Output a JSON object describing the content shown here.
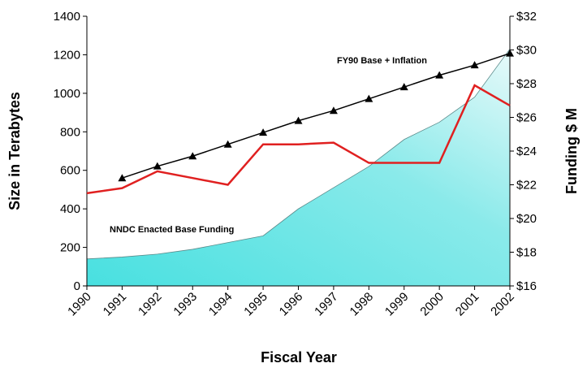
{
  "chart_data": {
    "type": "line",
    "categories": [
      "1990",
      "1991",
      "1992",
      "1993",
      "1994",
      "1995",
      "1996",
      "1997",
      "1998",
      "1999",
      "2000",
      "2001",
      "2002"
    ],
    "x_label": "Fiscal Year",
    "y_label": "Size in Terabytes",
    "y2_label": "Funding $ M",
    "ylim": [
      0,
      1400
    ],
    "yticks": [
      0,
      200,
      400,
      600,
      800,
      1000,
      1200,
      1400
    ],
    "y2lim": [
      16,
      32
    ],
    "y2ticks": [
      {
        "value": 16,
        "label": "$16"
      },
      {
        "value": 18,
        "label": "$18"
      },
      {
        "value": 20,
        "label": "$20"
      },
      {
        "value": 22,
        "label": "$22"
      },
      {
        "value": 24,
        "label": "$24"
      },
      {
        "value": 26,
        "label": "$26"
      },
      {
        "value": 28,
        "label": "$28"
      },
      {
        "value": 30,
        "label": "$30"
      },
      {
        "value": 32,
        "label": "$32"
      }
    ],
    "series": [
      {
        "kind": "area",
        "color": "#48e0e0",
        "values": [
          140,
          150,
          165,
          190,
          225,
          260,
          400,
          510,
          620,
          760,
          850,
          980,
          1230
        ]
      },
      {
        "name": "FY90 Base + Inflation",
        "color": "#000000",
        "axis": "y2",
        "marker": "triangle",
        "values": [
          null,
          22.4,
          23.1,
          23.7,
          24.4,
          25.1,
          25.8,
          26.4,
          27.1,
          27.8,
          28.5,
          29.1,
          29.8
        ]
      },
      {
        "name": "NNDC Enacted Base Funding",
        "color": "#e02020",
        "axis": "y2",
        "values": [
          21.5,
          21.8,
          22.8,
          22.4,
          22.0,
          24.4,
          24.4,
          24.5,
          23.3,
          23.3,
          23.3,
          27.9,
          26.7
        ]
      }
    ]
  }
}
